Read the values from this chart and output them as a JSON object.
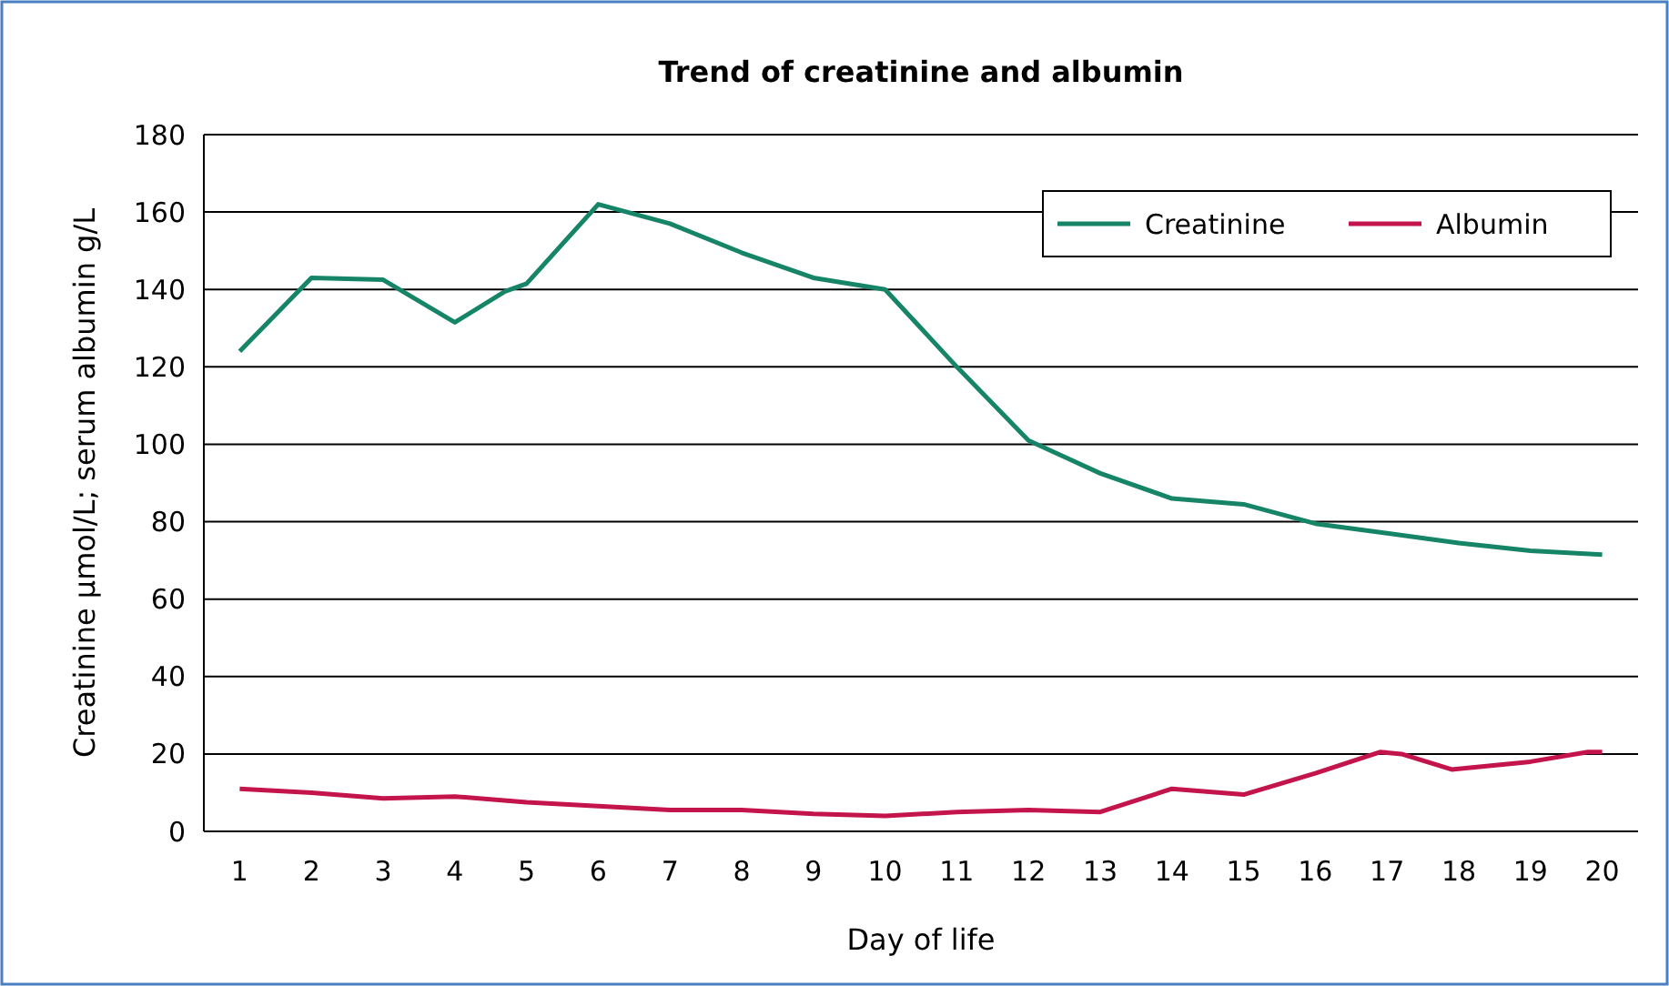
{
  "chart_data": {
    "type": "line",
    "title": "Trend of creatinine and albumin",
    "xlabel": "Day of life",
    "ylabel": "Creatinine µmol/L; serum albumin g/L",
    "xlim": [
      0.5,
      20.5
    ],
    "xticks": [
      1,
      2,
      3,
      4,
      5,
      6,
      7,
      8,
      9,
      10,
      11,
      12,
      13,
      14,
      15,
      16,
      17,
      18,
      19,
      20
    ],
    "ylim": [
      0,
      180
    ],
    "yticks": [
      0,
      20,
      40,
      60,
      80,
      100,
      120,
      140,
      160,
      180
    ],
    "grid": "y",
    "legend": "top right",
    "marker": "none",
    "line_style": "solid",
    "series": [
      {
        "name": "Creatinine",
        "color": "#168567",
        "x": [
          1,
          2,
          3,
          4,
          4.7,
          5,
          6,
          7,
          8,
          9,
          10,
          11,
          12,
          13,
          14,
          15,
          16,
          17,
          18,
          19,
          20
        ],
        "values": [
          124,
          143,
          142.5,
          131.5,
          139.5,
          141.5,
          162,
          157,
          149.5,
          143,
          140,
          120,
          101,
          92.5,
          86,
          84.5,
          79.5,
          77,
          74.5,
          72.5,
          71.5
        ]
      },
      {
        "name": "Albumin",
        "color": "#c4144c",
        "x": [
          1,
          2,
          3,
          4,
          5,
          6,
          7,
          8,
          9,
          10,
          11,
          12,
          13,
          14,
          15,
          16,
          16.9,
          17.2,
          17.9,
          19,
          19.8,
          20
        ],
        "values": [
          11,
          10,
          8.5,
          9,
          7.5,
          6.5,
          5.5,
          5.5,
          4.5,
          4,
          5,
          5.5,
          5,
          11,
          9.5,
          15,
          20.5,
          20,
          16,
          18,
          20.5,
          20.5
        ]
      }
    ]
  }
}
